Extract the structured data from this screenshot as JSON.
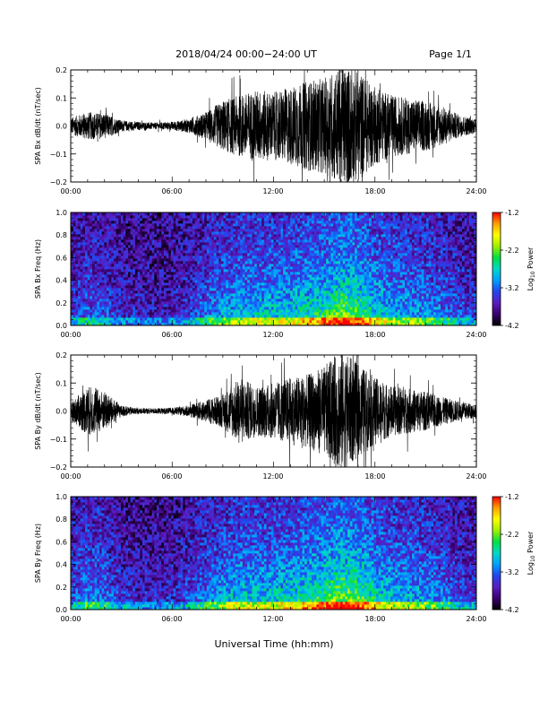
{
  "header": {
    "title": "2018/04/24  00:00−24:00 UT",
    "page": "Page 1/1"
  },
  "x_axis": {
    "label": "Universal Time (hh:mm)",
    "ticks": [
      "00:00",
      "06:00",
      "12:00",
      "18:00",
      "24:00"
    ]
  },
  "colorbar": {
    "label_prefix": "Log",
    "label_sub": "10",
    "label_suffix": " Power",
    "ticks": [
      "-1.2",
      "-2.2",
      "-3.2",
      "-4.2"
    ],
    "range": [
      -4.2,
      -1.2
    ],
    "colors": [
      "#000000",
      "#3a0070",
      "#5a1cc0",
      "#2244ee",
      "#00a0ff",
      "#00d8c8",
      "#00e040",
      "#a0f000",
      "#ffff00",
      "#ffa000",
      "#ff0000"
    ]
  },
  "chart_data": [
    {
      "type": "line",
      "ylabel": "SPA Bx dB/dt (nT/sec)",
      "xlim": [
        "00:00",
        "24:00"
      ],
      "ylim": [
        -0.2,
        0.2
      ],
      "ytick_labels": [
        "0.2",
        "0.1",
        "0.0",
        "−0.1",
        "−0.2"
      ],
      "envelope_hours": [
        0,
        1,
        2,
        3,
        4,
        5,
        6,
        7,
        8,
        9,
        10,
        11,
        12,
        13,
        14,
        15,
        16,
        17,
        18,
        19,
        20,
        21,
        22,
        23,
        24
      ],
      "envelope_amplitude": [
        0.03,
        0.05,
        0.045,
        0.02,
        0.015,
        0.012,
        0.015,
        0.025,
        0.05,
        0.09,
        0.11,
        0.13,
        0.12,
        0.14,
        0.16,
        0.17,
        0.22,
        0.2,
        0.14,
        0.11,
        0.1,
        0.09,
        0.07,
        0.04,
        0.025
      ]
    },
    {
      "type": "heatmap",
      "ylabel": "SPA Bx Freq (Hz)",
      "xlim": [
        "00:00",
        "24:00"
      ],
      "ylim": [
        0.0,
        1.0
      ],
      "ytick_labels": [
        "1.0",
        "0.8",
        "0.6",
        "0.4",
        "0.2",
        "0.0"
      ],
      "activity_hours": [
        0,
        1,
        2,
        3,
        4,
        5,
        6,
        7,
        8,
        9,
        10,
        11,
        12,
        13,
        14,
        15,
        16,
        17,
        18,
        19,
        20,
        21,
        22,
        23,
        24
      ],
      "activity_level": [
        0.25,
        0.35,
        0.3,
        0.2,
        0.18,
        0.15,
        0.18,
        0.25,
        0.4,
        0.5,
        0.55,
        0.6,
        0.58,
        0.62,
        0.68,
        0.75,
        0.9,
        0.82,
        0.65,
        0.55,
        0.52,
        0.48,
        0.4,
        0.3,
        0.25
      ]
    },
    {
      "type": "line",
      "ylabel": "SPA By dB/dt (nT/sec)",
      "xlim": [
        "00:00",
        "24:00"
      ],
      "ylim": [
        -0.2,
        0.2
      ],
      "ytick_labels": [
        "0.2",
        "0.1",
        "0.0",
        "−0.1",
        "−0.2"
      ],
      "envelope_hours": [
        0,
        1,
        2,
        3,
        4,
        5,
        6,
        7,
        8,
        9,
        10,
        11,
        12,
        13,
        14,
        15,
        16,
        17,
        18,
        19,
        20,
        21,
        22,
        23,
        24
      ],
      "envelope_amplitude": [
        0.03,
        0.09,
        0.07,
        0.02,
        0.01,
        0.01,
        0.012,
        0.02,
        0.04,
        0.06,
        0.12,
        0.09,
        0.1,
        0.12,
        0.13,
        0.16,
        0.22,
        0.17,
        0.12,
        0.09,
        0.08,
        0.07,
        0.05,
        0.035,
        0.025
      ]
    },
    {
      "type": "heatmap",
      "ylabel": "SPA By Freq (Hz)",
      "xlim": [
        "00:00",
        "24:00"
      ],
      "ylim": [
        0.0,
        1.0
      ],
      "ytick_labels": [
        "1.0",
        "0.8",
        "0.6",
        "0.4",
        "0.2",
        "0.0"
      ],
      "activity_hours": [
        0,
        1,
        2,
        3,
        4,
        5,
        6,
        7,
        8,
        9,
        10,
        11,
        12,
        13,
        14,
        15,
        16,
        17,
        18,
        19,
        20,
        21,
        22,
        23,
        24
      ],
      "activity_level": [
        0.28,
        0.45,
        0.38,
        0.25,
        0.2,
        0.18,
        0.2,
        0.28,
        0.42,
        0.52,
        0.6,
        0.6,
        0.6,
        0.65,
        0.72,
        0.8,
        0.92,
        0.85,
        0.68,
        0.58,
        0.55,
        0.5,
        0.42,
        0.32,
        0.26
      ]
    }
  ]
}
